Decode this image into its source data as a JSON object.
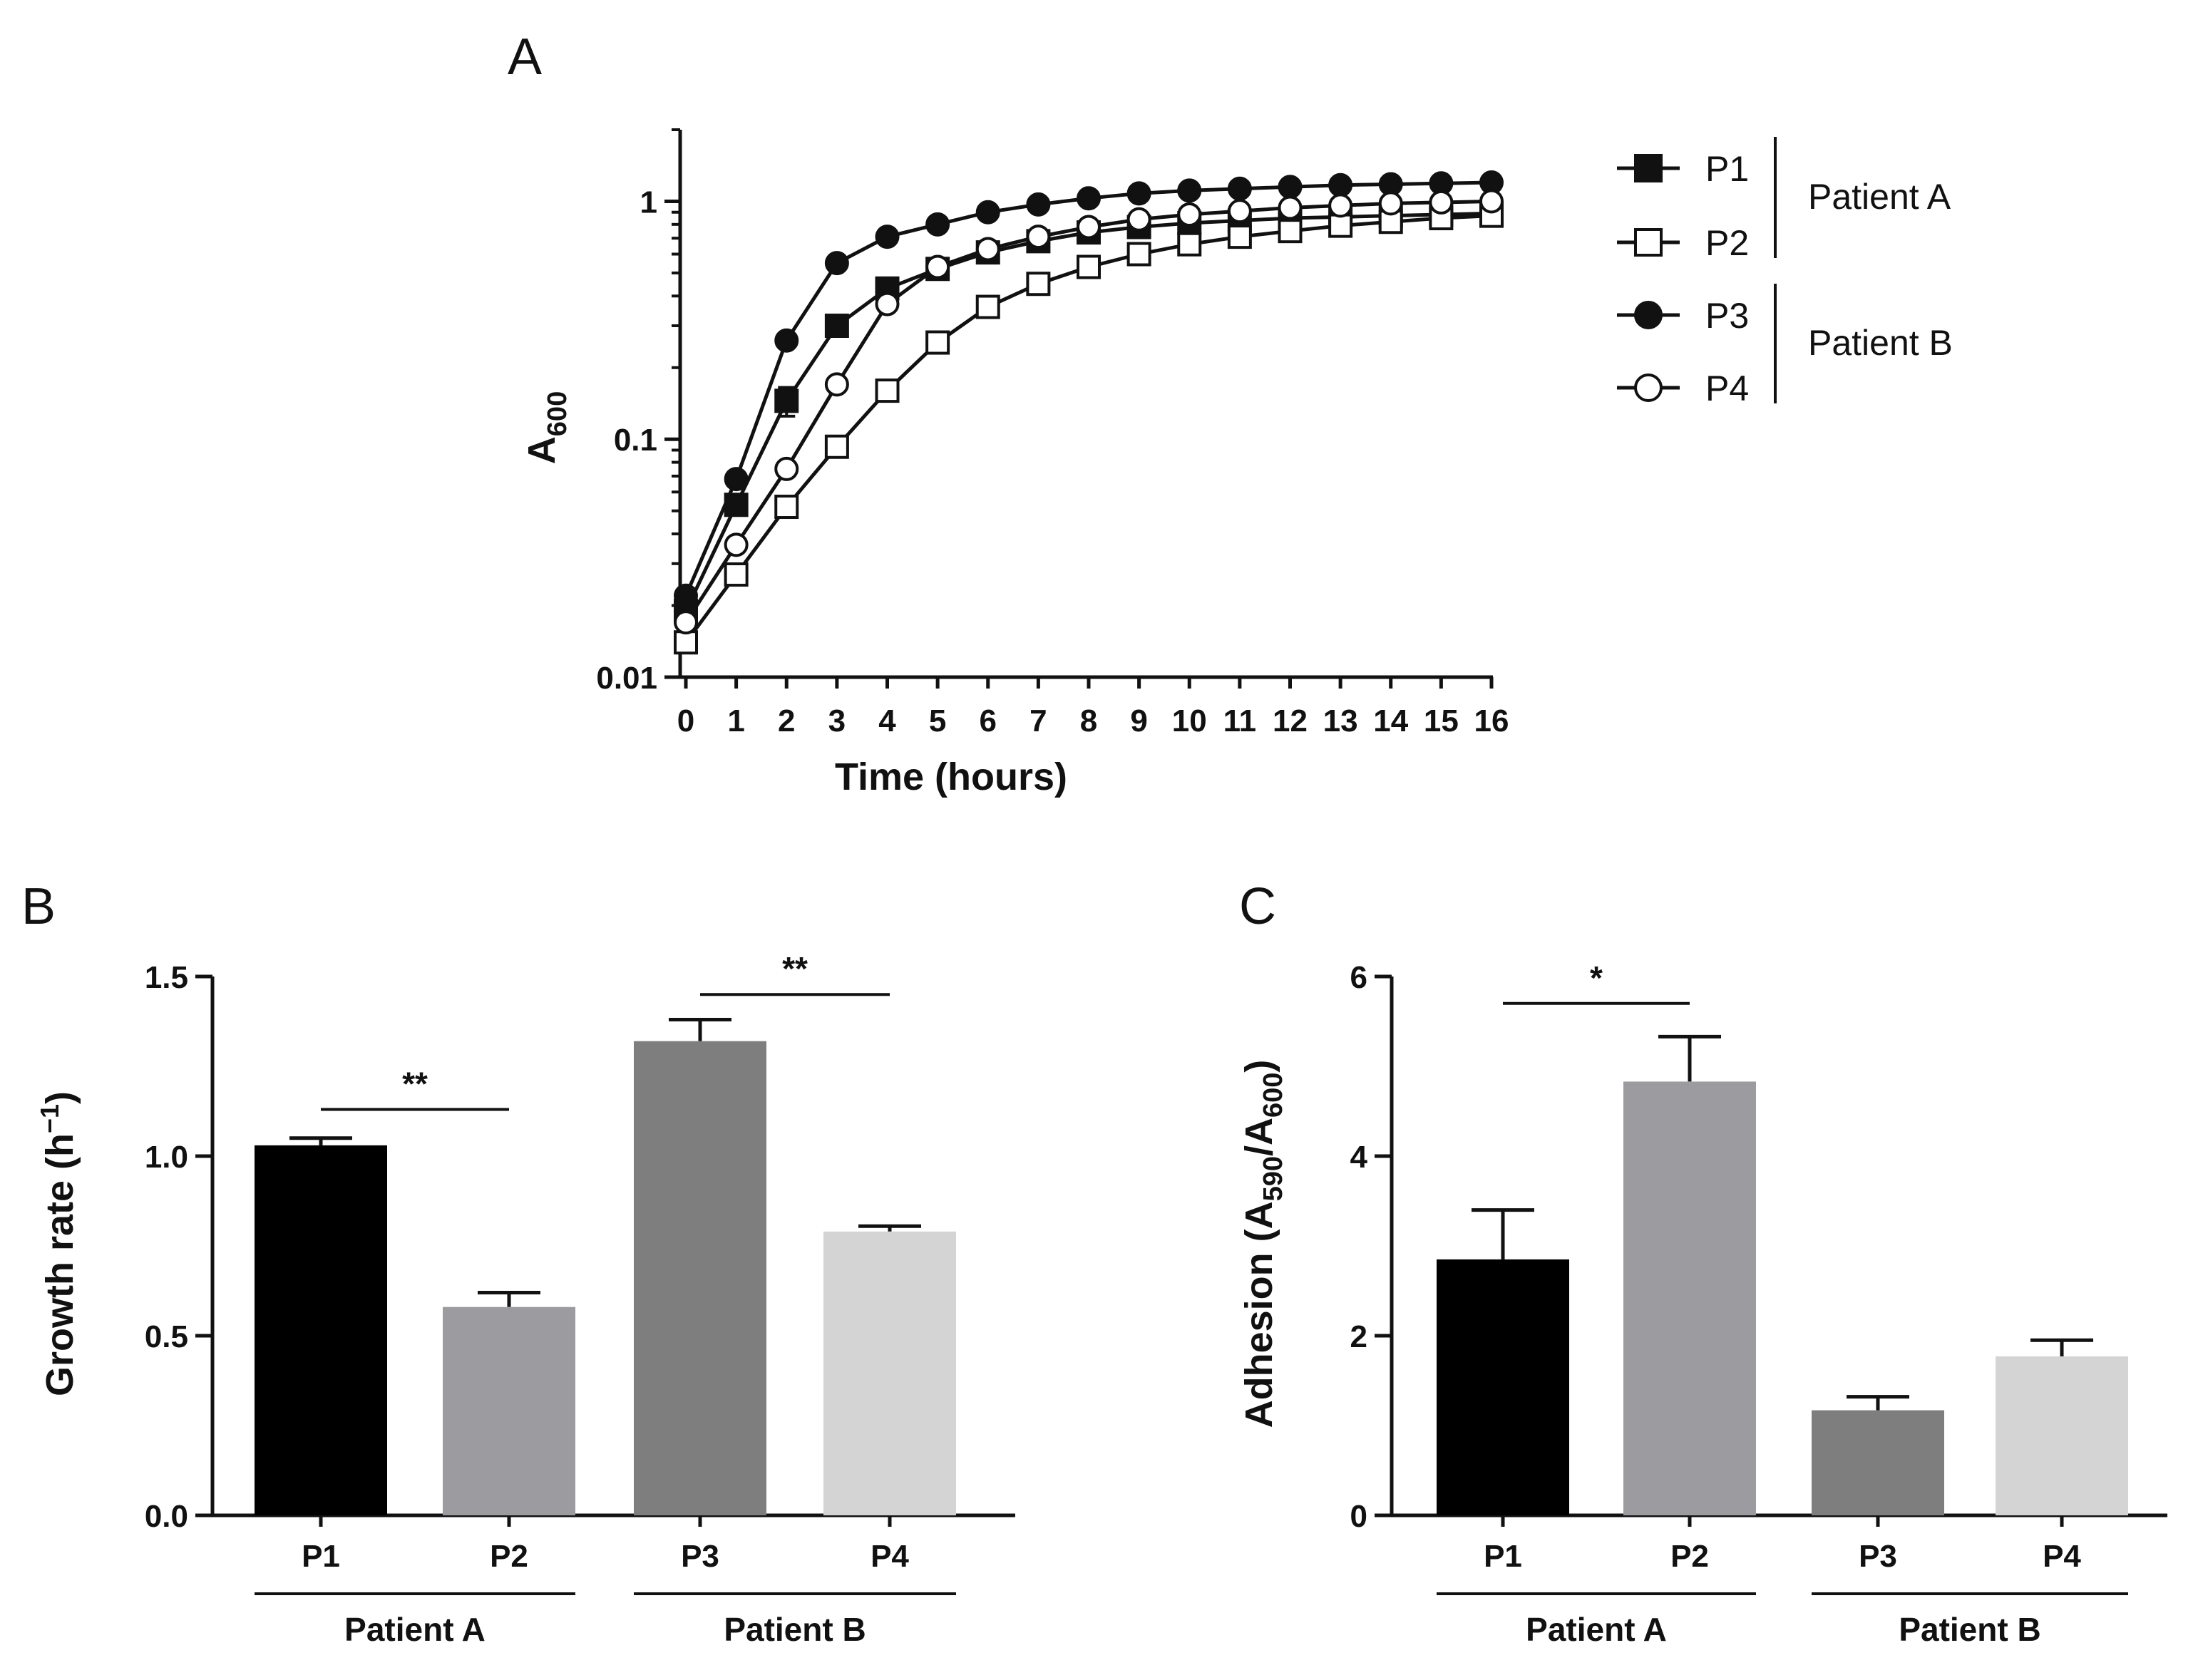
{
  "figure": {
    "panel_a": "A",
    "panel_b": "B",
    "panel_c": "C"
  },
  "chart_data": [
    {
      "type": "line",
      "panel": "A",
      "title": "",
      "xlabel": "Time (hours)",
      "ylabel_main": "A",
      "ylabel_sub": "600",
      "yscale": "log",
      "xlim": [
        0,
        16
      ],
      "ylim": [
        0.01,
        2
      ],
      "x_ticks": [
        "0",
        "1",
        "2",
        "3",
        "4",
        "5",
        "6",
        "7",
        "8",
        "9",
        "10",
        "11",
        "12",
        "13",
        "14",
        "15",
        "16"
      ],
      "y_ticks": [
        {
          "label": "0.01",
          "value": 0.01
        },
        {
          "label": "0.1",
          "value": 0.1
        },
        {
          "label": "1",
          "value": 1
        }
      ],
      "x": [
        0,
        1,
        2,
        3,
        4,
        5,
        6,
        7,
        8,
        9,
        10,
        11,
        12,
        13,
        14,
        15,
        16
      ],
      "series": [
        {
          "name": "P1",
          "marker": "square-filled",
          "values": [
            0.019,
            0.053,
            0.145,
            0.3,
            0.43,
            0.52,
            0.61,
            0.68,
            0.74,
            0.78,
            0.81,
            0.83,
            0.85,
            0.86,
            0.87,
            0.88,
            0.89
          ],
          "error_idx": 2,
          "error": 0.02
        },
        {
          "name": "P2",
          "marker": "square-open",
          "values": [
            0.014,
            0.027,
            0.052,
            0.093,
            0.16,
            0.255,
            0.36,
            0.45,
            0.53,
            0.6,
            0.66,
            0.71,
            0.75,
            0.79,
            0.82,
            0.85,
            0.87
          ]
        },
        {
          "name": "P3",
          "marker": "circle-filled",
          "values": [
            0.022,
            0.068,
            0.26,
            0.55,
            0.71,
            0.8,
            0.9,
            0.97,
            1.03,
            1.08,
            1.11,
            1.13,
            1.15,
            1.17,
            1.18,
            1.19,
            1.2
          ]
        },
        {
          "name": "P4",
          "marker": "circle-open",
          "values": [
            0.017,
            0.036,
            0.075,
            0.17,
            0.37,
            0.53,
            0.63,
            0.71,
            0.78,
            0.84,
            0.88,
            0.91,
            0.94,
            0.96,
            0.98,
            0.99,
            1.0
          ]
        }
      ],
      "legend": {
        "placement": "right",
        "groups": [
          {
            "label": "Patient A",
            "members": [
              "P1",
              "P2"
            ]
          },
          {
            "label": "Patient B",
            "members": [
              "P3",
              "P4"
            ]
          }
        ]
      }
    },
    {
      "type": "bar",
      "panel": "B",
      "ylabel_main": "Growth rate (h",
      "ylabel_sup": "−1",
      "ylabel_end": ")",
      "ylim": [
        0,
        1.5
      ],
      "y_ticks": [
        "0.0",
        "0.5",
        "1.0",
        "1.5"
      ],
      "categories": [
        "P1",
        "P2",
        "P3",
        "P4"
      ],
      "values": [
        1.03,
        0.58,
        1.32,
        0.79
      ],
      "errors": [
        0.02,
        0.04,
        0.06,
        0.015
      ],
      "colors": [
        "#000000",
        "#9c9ca0",
        "#7e7e7e",
        "#d4d4d4"
      ],
      "groups": [
        {
          "label": "Patient A",
          "members": [
            0,
            1
          ]
        },
        {
          "label": "Patient B",
          "members": [
            2,
            3
          ]
        }
      ],
      "significance": [
        {
          "from": 0,
          "to": 1,
          "label": "**",
          "y": 1.13
        },
        {
          "from": 2,
          "to": 3,
          "label": "**",
          "y": 1.45
        }
      ]
    },
    {
      "type": "bar",
      "panel": "C",
      "ylabel_main": "Adhesion (A",
      "ylabel_sub1": "590",
      "ylabel_mid": "/A",
      "ylabel_sub2": "600",
      "ylabel_end": ")",
      "ylim": [
        0,
        6
      ],
      "y_ticks": [
        "0",
        "2",
        "4",
        "6"
      ],
      "categories": [
        "P1",
        "P2",
        "P3",
        "P4"
      ],
      "values": [
        2.85,
        4.83,
        1.17,
        1.77
      ],
      "errors": [
        0.55,
        0.5,
        0.15,
        0.18
      ],
      "colors": [
        "#000000",
        "#9c9ca0",
        "#7e7e7e",
        "#d4d4d4"
      ],
      "groups": [
        {
          "label": "Patient A",
          "members": [
            0,
            1
          ]
        },
        {
          "label": "Patient B",
          "members": [
            2,
            3
          ]
        }
      ],
      "significance": [
        {
          "from": 0,
          "to": 1,
          "label": "*",
          "y": 5.7
        }
      ]
    }
  ]
}
